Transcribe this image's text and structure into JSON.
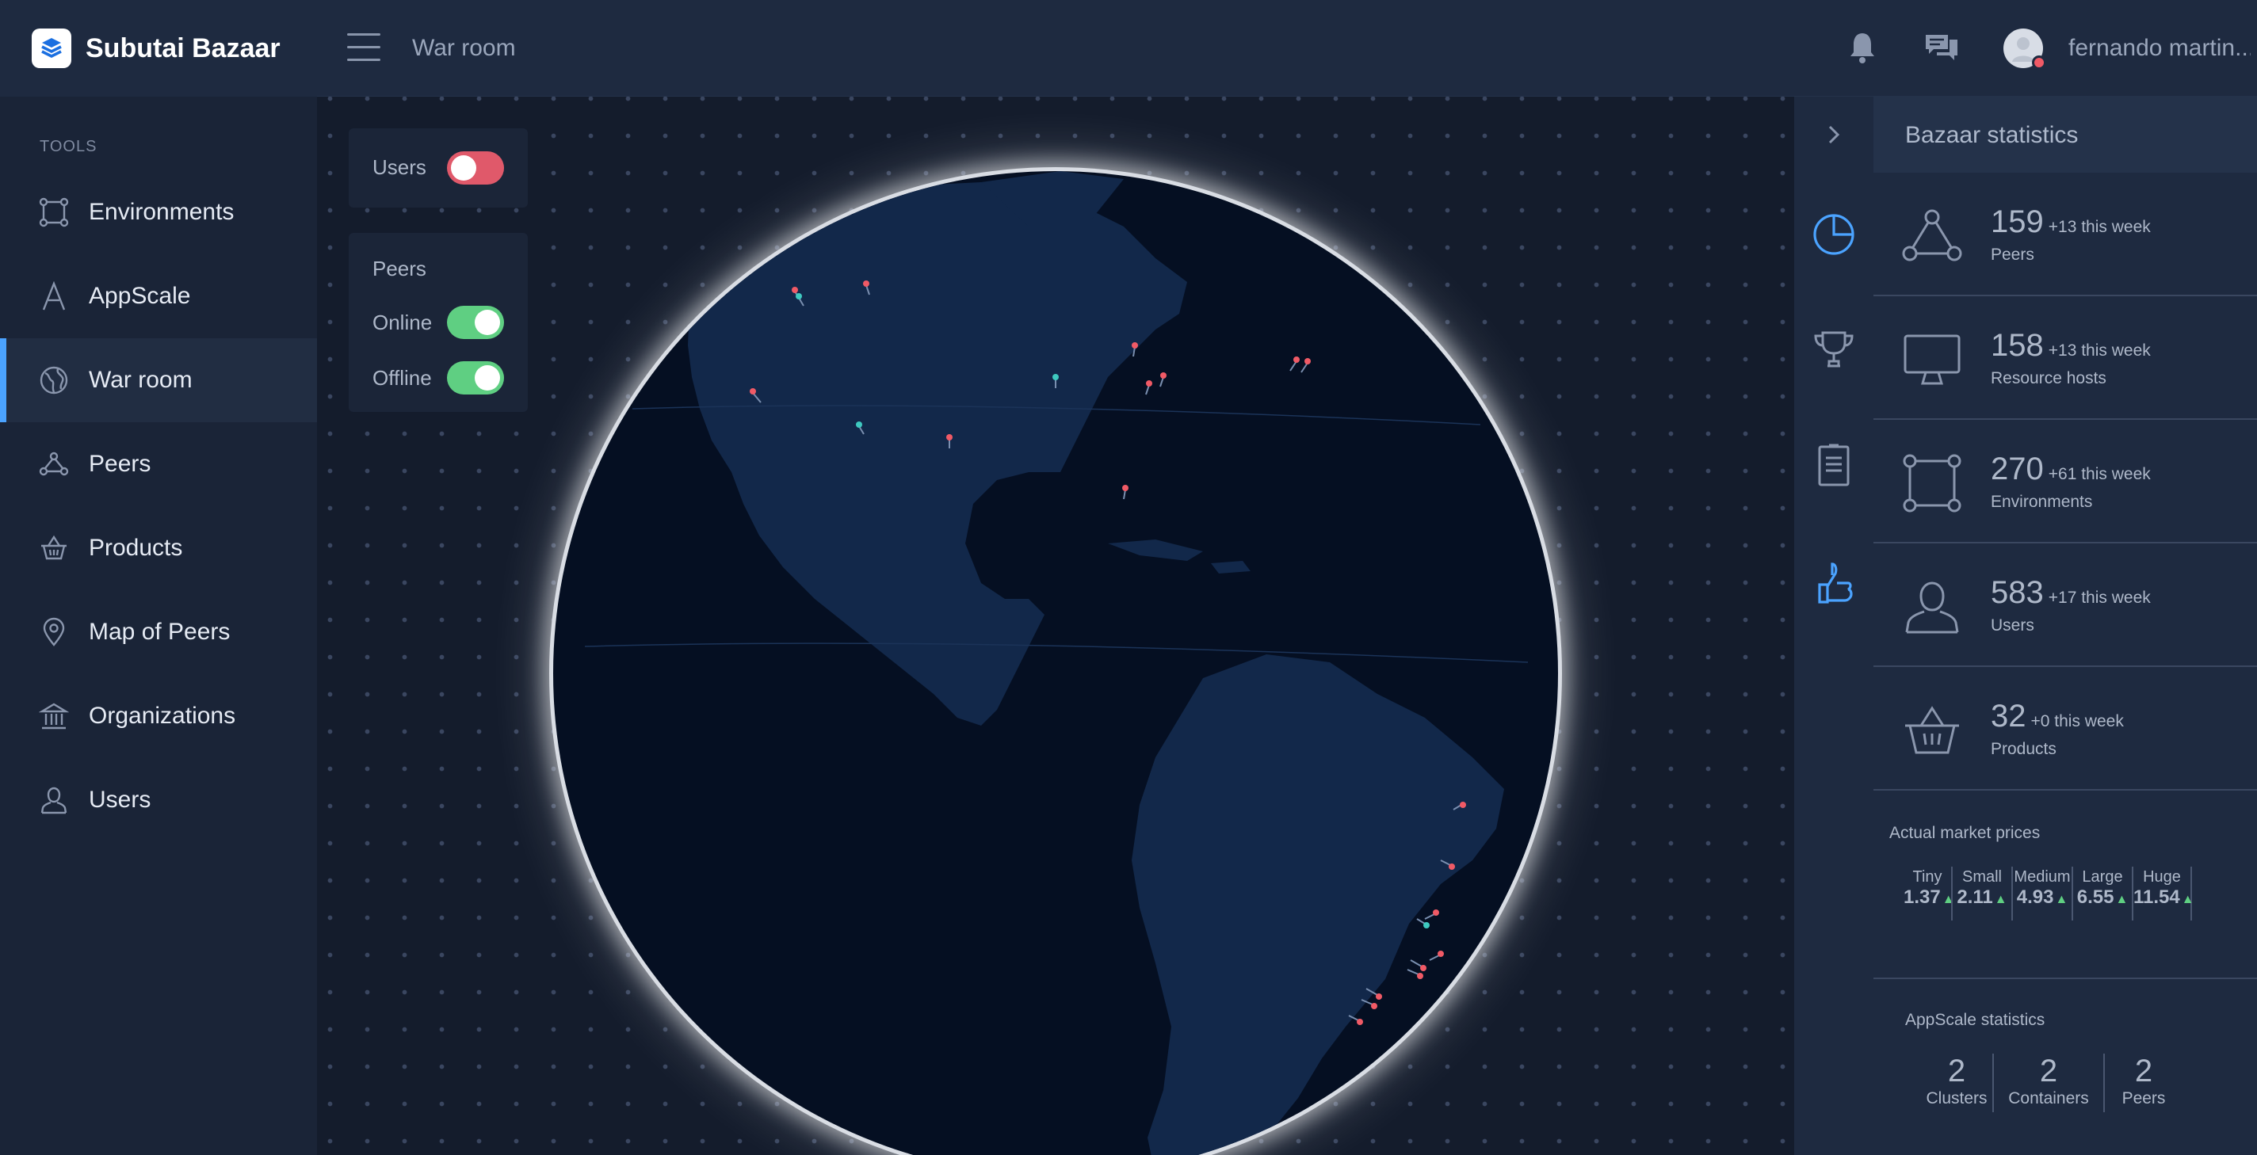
{
  "brand": {
    "name": "Subutai Bazaar"
  },
  "sidebar": {
    "section_label": "TOOLS",
    "items": [
      {
        "label": "Environments",
        "icon": "environments-icon"
      },
      {
        "label": "AppScale",
        "icon": "appscale-icon"
      },
      {
        "label": "War room",
        "icon": "globe-icon",
        "active": true
      },
      {
        "label": "Peers",
        "icon": "peers-icon"
      },
      {
        "label": "Products",
        "icon": "basket-icon"
      },
      {
        "label": "Map of Peers",
        "icon": "map-pin-icon"
      },
      {
        "label": "Organizations",
        "icon": "bank-icon"
      },
      {
        "label": "Users",
        "icon": "user-icon"
      }
    ]
  },
  "header": {
    "title": "War room",
    "user_name": "fernando martin..."
  },
  "filters": {
    "users_label": "Users",
    "users_on": false,
    "peers_title": "Peers",
    "online_label": "Online",
    "online_on": true,
    "offline_label": "Offline",
    "offline_on": true
  },
  "stats": {
    "title": "Bazaar statistics",
    "items": [
      {
        "value": "159",
        "delta": "+13 this week",
        "label": "Peers",
        "icon": "peers-icon"
      },
      {
        "value": "158",
        "delta": "+13 this week",
        "label": "Resource hosts",
        "icon": "monitor-icon"
      },
      {
        "value": "270",
        "delta": "+61 this week",
        "label": "Environments",
        "icon": "environments-icon"
      },
      {
        "value": "583",
        "delta": "+17 this week",
        "label": "Users",
        "icon": "user-icon"
      },
      {
        "value": "32",
        "delta": "+0 this week",
        "label": "Products",
        "icon": "basket-icon"
      }
    ]
  },
  "market": {
    "title": "Actual market prices",
    "items": [
      {
        "name": "Tiny",
        "value": "1.37"
      },
      {
        "name": "Small",
        "value": "2.11"
      },
      {
        "name": "Medium",
        "value": "4.93"
      },
      {
        "name": "Large",
        "value": "6.55"
      },
      {
        "name": "Huge",
        "value": "11.54"
      }
    ]
  },
  "appscale": {
    "title": "AppScale statistics",
    "items": [
      {
        "value": "2",
        "name": "Clusters"
      },
      {
        "value": "2",
        "name": "Containers"
      },
      {
        "value": "2",
        "name": "Peers"
      }
    ]
  },
  "colors": {
    "accent": "#4ba3ff",
    "online": "#5fcf82",
    "offline": "#e0596a",
    "peer_pin_red": "#f05a66",
    "peer_pin_teal": "#3ec9c0"
  }
}
